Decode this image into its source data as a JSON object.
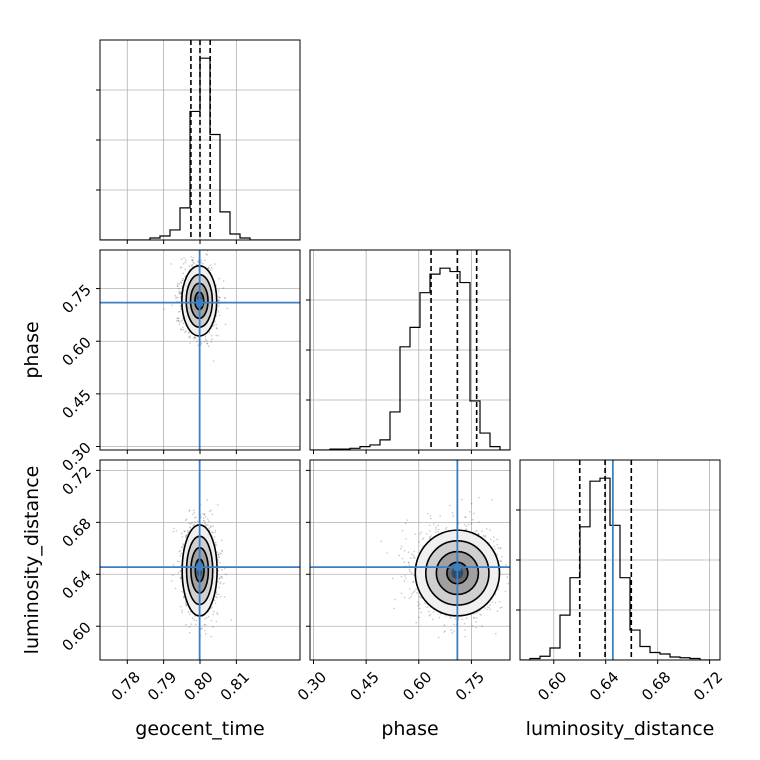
{
  "chart_data": {
    "type": "corner",
    "truth_color": "#3b7fc4",
    "grid": true,
    "parameters": [
      {
        "name": "geocent_time",
        "range": [
          0.7725,
          0.8275
        ],
        "ticks": [
          0.78,
          0.79,
          0.8,
          0.81
        ],
        "tick_labels": [
          "0.78",
          "0.79",
          "0.80",
          "0.81"
        ],
        "truth": 0.7999,
        "quantiles": [
          0.7975,
          0.8,
          0.8028
        ],
        "hist_edges": [
          0.7725,
          0.77525,
          0.778,
          0.78075,
          0.7835,
          0.78625,
          0.789,
          0.79175,
          0.7945,
          0.79725,
          0.8,
          0.80275,
          0.8055,
          0.80825,
          0.811,
          0.81375,
          0.8165,
          0.81925,
          0.822,
          0.82475,
          0.8275
        ],
        "hist_counts": [
          0,
          0,
          0,
          0,
          0,
          2,
          4,
          10,
          32,
          128,
          181,
          105,
          28,
          6,
          2,
          0,
          0,
          0,
          0,
          0
        ]
      },
      {
        "name": "phase",
        "range": [
          0.29,
          0.86
        ],
        "ticks": [
          0.3,
          0.45,
          0.6,
          0.75
        ],
        "tick_labels": [
          "0.30",
          "0.45",
          "0.60",
          "0.75"
        ],
        "truth": 0.71,
        "quantiles": [
          0.635,
          0.71,
          0.765
        ],
        "hist_edges": [
          0.29,
          0.3185,
          0.347,
          0.3755,
          0.404,
          0.4325,
          0.461,
          0.4895,
          0.518,
          0.5465,
          0.575,
          0.6035,
          0.632,
          0.6605,
          0.689,
          0.7175,
          0.746,
          0.7745,
          0.803,
          0.8315,
          0.86
        ],
        "hist_counts": [
          0,
          0,
          1,
          1,
          2,
          4,
          6,
          12,
          45,
          122,
          145,
          186,
          208,
          215,
          211,
          198,
          58,
          20,
          4,
          0
        ]
      },
      {
        "name": "luminosity_distance",
        "range": [
          0.574,
          0.728
        ],
        "ticks": [
          0.6,
          0.64,
          0.68,
          0.72
        ],
        "tick_labels": [
          "0.60",
          "0.64",
          "0.68",
          "0.72"
        ],
        "truth": 0.6455,
        "quantiles": [
          0.62,
          0.6395,
          0.6597
        ],
        "hist_edges": [
          0.574,
          0.5817,
          0.5894,
          0.5971,
          0.6048,
          0.6125,
          0.6202,
          0.6279,
          0.6356,
          0.6433,
          0.651,
          0.6587,
          0.6664,
          0.6741,
          0.6818,
          0.6895,
          0.6972,
          0.7049,
          0.7126,
          0.7203,
          0.728
        ],
        "hist_counts": [
          0,
          2,
          5,
          16,
          60,
          110,
          178,
          239,
          243,
          180,
          110,
          40,
          18,
          10,
          8,
          4,
          3,
          2,
          0,
          0
        ]
      }
    ],
    "pairs": [
      {
        "x": "geocent_time",
        "y": "phase",
        "center": [
          0.7998,
          0.715
        ],
        "sigma": [
          0.0024,
          0.05
        ],
        "contour_levels_sigma": [
          0.5,
          1.0,
          1.5,
          2.0
        ]
      },
      {
        "x": "geocent_time",
        "y": "luminosity_distance",
        "center": [
          0.7999,
          0.643
        ],
        "sigma": [
          0.0024,
          0.0175
        ],
        "contour_levels_sigma": [
          0.5,
          1.0,
          1.5,
          2.0
        ]
      },
      {
        "x": "phase",
        "y": "luminosity_distance",
        "center": [
          0.71,
          0.641
        ],
        "sigma": [
          0.06,
          0.0165
        ],
        "contour_levels_sigma": [
          0.5,
          1.0,
          1.5,
          2.0
        ]
      }
    ]
  }
}
